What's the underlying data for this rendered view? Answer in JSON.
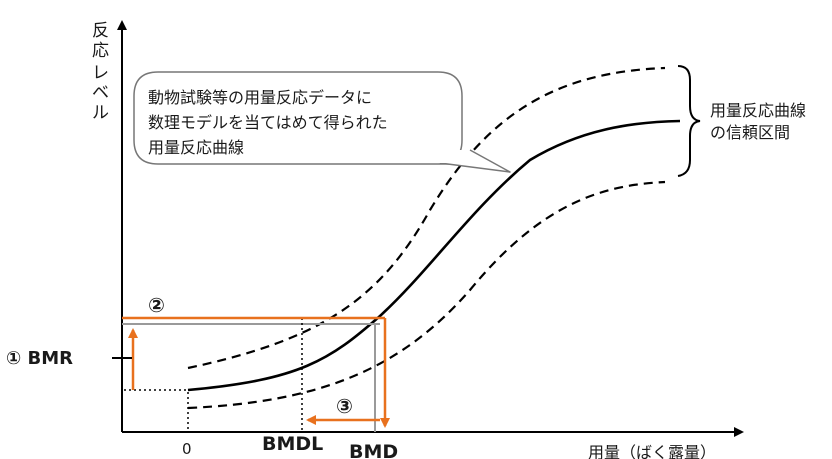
{
  "y_axis_label_lines": [
    "反応",
    "レベル"
  ],
  "x_axis_label": "用量（ばく露量）",
  "callout_lines": [
    "動物試験等の用量反応データに",
    "数理モデルを当てはめて得られた",
    "用量反応曲線"
  ],
  "ci_label_lines": [
    "用量反応曲線",
    "の信頼区間"
  ],
  "bmr_label": "① BMR",
  "step2_label": "②",
  "step3_label": "③",
  "origin_tick": "0",
  "bmdl_label": "BMDL",
  "bmd_label": "BMD",
  "colors": {
    "axis": "#000000",
    "curve": "#000000",
    "arrow": "#e8711e",
    "guide_gray": "#9a9a9a"
  }
}
